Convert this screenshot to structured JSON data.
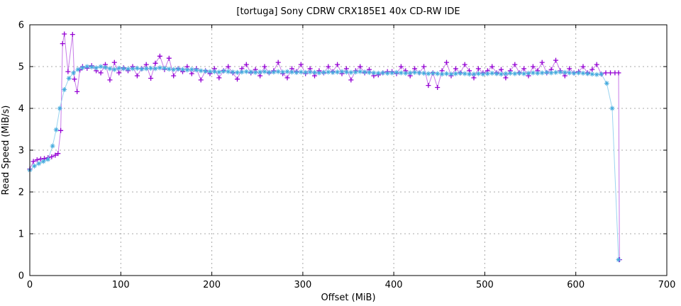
{
  "window": {
    "background": "#ffffff"
  },
  "chart_data": {
    "type": "line",
    "title": "[tortuga] Sony CDRW CRX185E1 40x CD-RW IDE",
    "xlabel": "Offset (MiB)",
    "ylabel": "Read Speed (MiB/s)",
    "xlim": [
      0,
      700
    ],
    "ylim": [
      0,
      6
    ],
    "xticks": [
      0,
      100,
      200,
      300,
      400,
      500,
      600,
      700
    ],
    "yticks": [
      0,
      1,
      2,
      3,
      4,
      5,
      6
    ],
    "grid": true,
    "grid_color": "#a8a8a8",
    "frame_color": "#000000",
    "legend": "none",
    "series": [
      {
        "name": "read-speed-raw",
        "marker": "plus",
        "marker_color": "#9400d3",
        "line_color": "#c77ae8",
        "points": [
          [
            0,
            2.55
          ],
          [
            4,
            2.73
          ],
          [
            8,
            2.77
          ],
          [
            12,
            2.79
          ],
          [
            16,
            2.8
          ],
          [
            20,
            2.82
          ],
          [
            24,
            2.84
          ],
          [
            28,
            2.88
          ],
          [
            31,
            2.92
          ],
          [
            34,
            3.47
          ],
          [
            36,
            5.55
          ],
          [
            38,
            5.78
          ],
          [
            42,
            4.88
          ],
          [
            47,
            5.77
          ],
          [
            49,
            4.7
          ],
          [
            52,
            4.4
          ],
          [
            55,
            4.92
          ],
          [
            58,
            5.0
          ],
          [
            63,
            4.96
          ],
          [
            68,
            5.02
          ],
          [
            73,
            4.9
          ],
          [
            78,
            4.85
          ],
          [
            83,
            5.05
          ],
          [
            88,
            4.68
          ],
          [
            93,
            5.1
          ],
          [
            98,
            4.85
          ],
          [
            103,
            4.97
          ],
          [
            108,
            4.9
          ],
          [
            113,
            5.0
          ],
          [
            118,
            4.78
          ],
          [
            123,
            4.95
          ],
          [
            128,
            5.05
          ],
          [
            133,
            4.72
          ],
          [
            138,
            5.08
          ],
          [
            143,
            5.25
          ],
          [
            148,
            4.93
          ],
          [
            153,
            5.2
          ],
          [
            158,
            4.78
          ],
          [
            163,
            4.95
          ],
          [
            168,
            4.88
          ],
          [
            173,
            5.0
          ],
          [
            178,
            4.83
          ],
          [
            183,
            4.95
          ],
          [
            188,
            4.68
          ],
          [
            193,
            4.9
          ],
          [
            198,
            4.83
          ],
          [
            203,
            4.95
          ],
          [
            208,
            4.73
          ],
          [
            213,
            4.9
          ],
          [
            218,
            5.0
          ],
          [
            223,
            4.85
          ],
          [
            228,
            4.7
          ],
          [
            233,
            4.95
          ],
          [
            238,
            5.05
          ],
          [
            243,
            4.85
          ],
          [
            248,
            4.93
          ],
          [
            253,
            4.78
          ],
          [
            258,
            5.0
          ],
          [
            263,
            4.85
          ],
          [
            268,
            4.9
          ],
          [
            273,
            5.1
          ],
          [
            278,
            4.83
          ],
          [
            283,
            4.73
          ],
          [
            288,
            4.95
          ],
          [
            293,
            4.88
          ],
          [
            298,
            5.05
          ],
          [
            303,
            4.83
          ],
          [
            308,
            4.95
          ],
          [
            313,
            4.78
          ],
          [
            318,
            4.9
          ],
          [
            323,
            4.85
          ],
          [
            328,
            5.0
          ],
          [
            333,
            4.88
          ],
          [
            338,
            5.05
          ],
          [
            343,
            4.83
          ],
          [
            348,
            4.95
          ],
          [
            353,
            4.68
          ],
          [
            358,
            4.9
          ],
          [
            363,
            5.0
          ],
          [
            368,
            4.85
          ],
          [
            373,
            4.93
          ],
          [
            378,
            4.78
          ],
          [
            383,
            4.8
          ],
          [
            388,
            4.85
          ],
          [
            393,
            4.88
          ],
          [
            398,
            4.88
          ],
          [
            403,
            4.83
          ],
          [
            408,
            5.0
          ],
          [
            413,
            4.9
          ],
          [
            418,
            4.78
          ],
          [
            423,
            4.95
          ],
          [
            428,
            4.85
          ],
          [
            433,
            5.0
          ],
          [
            438,
            4.55
          ],
          [
            443,
            4.85
          ],
          [
            448,
            4.5
          ],
          [
            453,
            4.9
          ],
          [
            458,
            5.1
          ],
          [
            463,
            4.78
          ],
          [
            468,
            4.95
          ],
          [
            473,
            4.85
          ],
          [
            478,
            5.05
          ],
          [
            483,
            4.9
          ],
          [
            488,
            4.73
          ],
          [
            493,
            4.95
          ],
          [
            498,
            4.85
          ],
          [
            503,
            4.9
          ],
          [
            508,
            5.0
          ],
          [
            513,
            4.85
          ],
          [
            518,
            4.93
          ],
          [
            523,
            4.73
          ],
          [
            528,
            4.9
          ],
          [
            533,
            5.05
          ],
          [
            538,
            4.85
          ],
          [
            543,
            4.95
          ],
          [
            548,
            4.78
          ],
          [
            553,
            5.0
          ],
          [
            558,
            4.9
          ],
          [
            563,
            5.1
          ],
          [
            568,
            4.85
          ],
          [
            573,
            4.93
          ],
          [
            578,
            5.15
          ],
          [
            583,
            4.9
          ],
          [
            588,
            4.78
          ],
          [
            593,
            4.95
          ],
          [
            598,
            4.85
          ],
          [
            603,
            4.88
          ],
          [
            608,
            5.0
          ],
          [
            613,
            4.85
          ],
          [
            618,
            4.93
          ],
          [
            623,
            5.05
          ],
          [
            628,
            4.82
          ],
          [
            633,
            4.85
          ],
          [
            638,
            4.85
          ],
          [
            643,
            4.85
          ],
          [
            647,
            4.85
          ],
          [
            648,
            0.38
          ]
        ]
      },
      {
        "name": "read-speed-smoothed",
        "marker": "asterisk",
        "marker_color": "#44aadd",
        "line_color": "#9bd4f0",
        "points": [
          [
            0,
            2.52
          ],
          [
            5,
            2.62
          ],
          [
            10,
            2.68
          ],
          [
            15,
            2.73
          ],
          [
            20,
            2.78
          ],
          [
            25,
            3.1
          ],
          [
            29,
            3.49
          ],
          [
            33,
            4.0
          ],
          [
            38,
            4.45
          ],
          [
            43,
            4.72
          ],
          [
            48,
            4.85
          ],
          [
            53,
            4.93
          ],
          [
            58,
            4.97
          ],
          [
            63,
            5.0
          ],
          [
            68,
            4.99
          ],
          [
            73,
            4.97
          ],
          [
            78,
            5.0
          ],
          [
            83,
            4.98
          ],
          [
            88,
            4.95
          ],
          [
            93,
            4.93
          ],
          [
            98,
            4.96
          ],
          [
            103,
            4.95
          ],
          [
            108,
            4.94
          ],
          [
            113,
            4.95
          ],
          [
            118,
            4.96
          ],
          [
            123,
            4.94
          ],
          [
            128,
            4.95
          ],
          [
            133,
            4.96
          ],
          [
            138,
            4.95
          ],
          [
            143,
            4.97
          ],
          [
            148,
            4.96
          ],
          [
            153,
            4.94
          ],
          [
            158,
            4.93
          ],
          [
            163,
            4.94
          ],
          [
            168,
            4.93
          ],
          [
            173,
            4.92
          ],
          [
            178,
            4.93
          ],
          [
            183,
            4.92
          ],
          [
            188,
            4.9
          ],
          [
            193,
            4.89
          ],
          [
            198,
            4.88
          ],
          [
            203,
            4.88
          ],
          [
            208,
            4.87
          ],
          [
            213,
            4.89
          ],
          [
            218,
            4.88
          ],
          [
            223,
            4.87
          ],
          [
            228,
            4.86
          ],
          [
            233,
            4.87
          ],
          [
            238,
            4.88
          ],
          [
            243,
            4.87
          ],
          [
            248,
            4.86
          ],
          [
            253,
            4.87
          ],
          [
            258,
            4.88
          ],
          [
            263,
            4.86
          ],
          [
            268,
            4.87
          ],
          [
            273,
            4.88
          ],
          [
            278,
            4.87
          ],
          [
            283,
            4.88
          ],
          [
            288,
            4.87
          ],
          [
            293,
            4.86
          ],
          [
            298,
            4.87
          ],
          [
            303,
            4.86
          ],
          [
            308,
            4.87
          ],
          [
            313,
            4.86
          ],
          [
            318,
            4.85
          ],
          [
            323,
            4.86
          ],
          [
            328,
            4.87
          ],
          [
            333,
            4.86
          ],
          [
            338,
            4.87
          ],
          [
            343,
            4.88
          ],
          [
            348,
            4.87
          ],
          [
            353,
            4.86
          ],
          [
            358,
            4.87
          ],
          [
            363,
            4.88
          ],
          [
            368,
            4.87
          ],
          [
            373,
            4.86
          ],
          [
            378,
            4.85
          ],
          [
            383,
            4.84
          ],
          [
            388,
            4.85
          ],
          [
            393,
            4.84
          ],
          [
            398,
            4.85
          ],
          [
            403,
            4.86
          ],
          [
            408,
            4.85
          ],
          [
            413,
            4.84
          ],
          [
            418,
            4.85
          ],
          [
            423,
            4.86
          ],
          [
            428,
            4.85
          ],
          [
            433,
            4.84
          ],
          [
            438,
            4.83
          ],
          [
            443,
            4.84
          ],
          [
            448,
            4.83
          ],
          [
            453,
            4.82
          ],
          [
            458,
            4.83
          ],
          [
            463,
            4.82
          ],
          [
            468,
            4.83
          ],
          [
            473,
            4.84
          ],
          [
            478,
            4.83
          ],
          [
            483,
            4.82
          ],
          [
            488,
            4.82
          ],
          [
            493,
            4.83
          ],
          [
            498,
            4.82
          ],
          [
            503,
            4.83
          ],
          [
            508,
            4.84
          ],
          [
            513,
            4.83
          ],
          [
            518,
            4.82
          ],
          [
            523,
            4.83
          ],
          [
            528,
            4.84
          ],
          [
            533,
            4.83
          ],
          [
            538,
            4.84
          ],
          [
            543,
            4.83
          ],
          [
            548,
            4.84
          ],
          [
            553,
            4.85
          ],
          [
            558,
            4.84
          ],
          [
            563,
            4.85
          ],
          [
            568,
            4.86
          ],
          [
            573,
            4.85
          ],
          [
            578,
            4.86
          ],
          [
            583,
            4.87
          ],
          [
            588,
            4.86
          ],
          [
            593,
            4.85
          ],
          [
            598,
            4.84
          ],
          [
            603,
            4.85
          ],
          [
            608,
            4.84
          ],
          [
            613,
            4.83
          ],
          [
            618,
            4.82
          ],
          [
            623,
            4.81
          ],
          [
            628,
            4.82
          ],
          [
            634,
            4.6
          ],
          [
            640,
            4.0
          ],
          [
            647,
            0.38
          ]
        ]
      }
    ]
  }
}
